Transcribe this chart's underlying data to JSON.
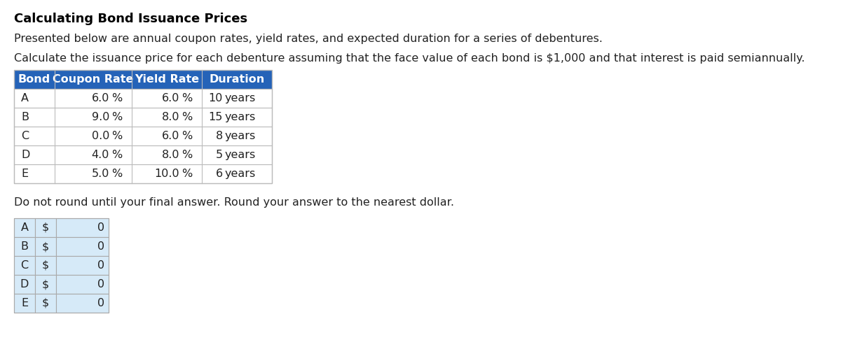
{
  "title": "Calculating Bond Issuance Prices",
  "subtitle1": "Presented below are annual coupon rates, yield rates, and expected duration for a series of debentures.",
  "subtitle2": "Calculate the issuance price for each debenture assuming that the face value of each bond is $1,000 and that interest is paid semiannually.",
  "table1_header": [
    "Bond",
    "Coupon Rate",
    "Yield Rate",
    "Duration"
  ],
  "table1_header_bg": "#2563B8",
  "table1_header_color": "#FFFFFF",
  "table1_rows": [
    [
      "A",
      "6.0",
      "%",
      "6.0",
      "%",
      "10",
      "years"
    ],
    [
      "B",
      "9.0",
      "%",
      "8.0",
      "%",
      "15",
      "years"
    ],
    [
      "C",
      "0.0",
      "%",
      "6.0",
      "%",
      "8",
      "years"
    ],
    [
      "D",
      "4.0",
      "%",
      "8.0",
      "%",
      "5",
      "years"
    ],
    [
      "E",
      "5.0",
      "%",
      "10.0",
      "%",
      "6",
      "years"
    ]
  ],
  "table1_border_color": "#BBBBBB",
  "table1_text_color": "#222222",
  "note_text": "Do not round until your final answer. Round your answer to the nearest dollar.",
  "table2_rows": [
    [
      "A",
      "$",
      "0"
    ],
    [
      "B",
      "$",
      "0"
    ],
    [
      "C",
      "$",
      "0"
    ],
    [
      "D",
      "$",
      "0"
    ],
    [
      "E",
      "$",
      "0"
    ]
  ],
  "table2_bg": "#D6EAF8",
  "table2_border_color": "#AAAAAA",
  "table2_text_color": "#222222",
  "bg_color": "#FFFFFF",
  "title_fontsize": 13,
  "body_fontsize": 11.5,
  "table_fontsize": 11.5
}
